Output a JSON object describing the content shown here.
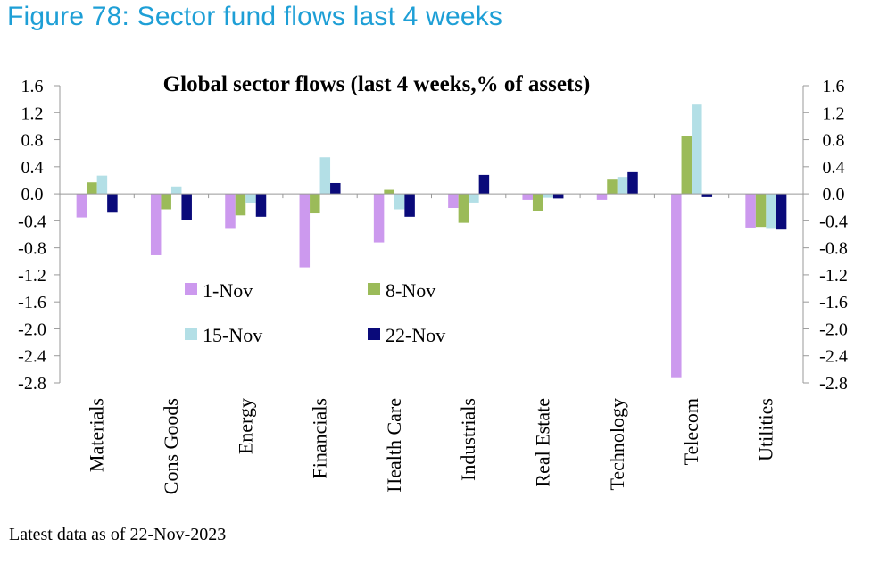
{
  "figure_title": "Figure 78: Sector fund flows last 4 weeks",
  "footnote": "Latest data as of 22-Nov-2023",
  "chart_data": {
    "type": "bar",
    "title": "Global sector flows (last 4 weeks,% of assets)",
    "xlabel": "",
    "ylabel": "",
    "ylim": [
      -2.8,
      1.6
    ],
    "yticks": [
      1.6,
      1.2,
      0.8,
      0.4,
      0.0,
      -0.4,
      -0.8,
      -1.2,
      -1.6,
      -2.0,
      -2.4,
      -2.8
    ],
    "ytick_labels": [
      "1.6",
      "1.2",
      "0.8",
      "0.4",
      "0.0",
      "-0.4",
      "-0.8",
      "-1.2",
      "-1.6",
      "-2.0",
      "-2.4",
      "-2.8"
    ],
    "secondary_y_axis": true,
    "legend_position": "center-left",
    "categories": [
      "Materials",
      "Cons Goods",
      "Energy",
      "Financials",
      "Health Care",
      "Industrials",
      "Real Estate",
      "Technology",
      "Telecom",
      "Utilities"
    ],
    "series": [
      {
        "name": "1-Nov",
        "color": "#cc99ee",
        "values": [
          -0.35,
          -0.91,
          -0.52,
          -1.09,
          -0.72,
          -0.21,
          -0.09,
          -0.09,
          -2.73,
          -0.5
        ]
      },
      {
        "name": "8-Nov",
        "color": "#9bbb59",
        "values": [
          0.17,
          -0.23,
          -0.32,
          -0.29,
          0.06,
          -0.43,
          -0.26,
          0.21,
          0.86,
          -0.49
        ]
      },
      {
        "name": "15-Nov",
        "color": "#b3dfe6",
        "values": [
          0.27,
          0.11,
          -0.14,
          0.54,
          -0.23,
          -0.13,
          -0.06,
          0.25,
          1.32,
          -0.52
        ]
      },
      {
        "name": "22-Nov",
        "color": "#0a0a7a",
        "values": [
          -0.28,
          -0.39,
          -0.34,
          0.16,
          -0.34,
          0.28,
          -0.07,
          0.32,
          -0.05,
          -0.53
        ]
      }
    ]
  }
}
